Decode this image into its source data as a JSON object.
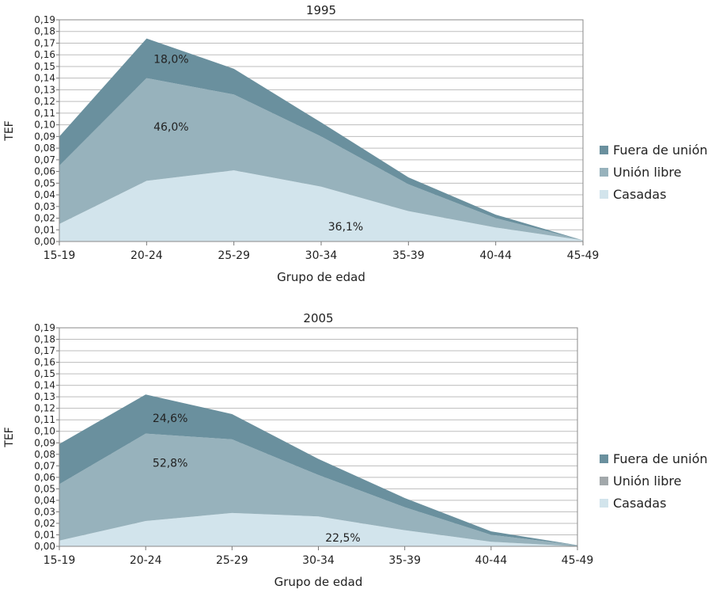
{
  "chart_data": [
    {
      "type": "area",
      "stacked": true,
      "title": "1995",
      "xlabel": "Grupo de edad",
      "ylabel": "TEF",
      "ylim": [
        0,
        0.19
      ],
      "ytick_step": 0.01,
      "grid": true,
      "legend_position": "right",
      "categories": [
        "15-19",
        "20-24",
        "25-29",
        "30-34",
        "35-39",
        "40-44",
        "45-49"
      ],
      "series": [
        {
          "name": "Casadas",
          "color": "#d2e4ec",
          "values": [
            0.015,
            0.052,
            0.061,
            0.047,
            0.026,
            0.012,
            0.001
          ]
        },
        {
          "name": "Unión libre",
          "color": "#97b2bc",
          "values": [
            0.05,
            0.088,
            0.065,
            0.043,
            0.023,
            0.008,
            0.0
          ]
        },
        {
          "name": "Fuera de unión",
          "color": "#6a909e",
          "values": [
            0.025,
            0.034,
            0.022,
            0.012,
            0.006,
            0.003,
            0.0
          ]
        }
      ],
      "legend": [
        {
          "label": "Fuera de unión",
          "color": "#6a909e"
        },
        {
          "label": "Unión libre",
          "color": "#97b2bc"
        },
        {
          "label": "Casadas",
          "color": "#d2e4ec"
        }
      ],
      "annotations": [
        {
          "text": "18,0%",
          "x": "20-24",
          "y": 0.1565
        },
        {
          "text": "46,0%",
          "x": "20-24",
          "y": 0.0985
        },
        {
          "text": "36,1%",
          "x": "30-34",
          "y": 0.013
        }
      ]
    },
    {
      "type": "area",
      "stacked": true,
      "title": "2005",
      "xlabel": "Grupo de edad",
      "ylabel": "TEF",
      "ylim": [
        0,
        0.19
      ],
      "ytick_step": 0.01,
      "grid": true,
      "legend_position": "right",
      "categories": [
        "15-19",
        "20-24",
        "25-29",
        "30-34",
        "35-39",
        "40-44",
        "45-49"
      ],
      "series": [
        {
          "name": "Casadas",
          "color": "#d2e4ec",
          "values": [
            0.005,
            0.022,
            0.029,
            0.026,
            0.014,
            0.004,
            0.0
          ]
        },
        {
          "name": "Unión libre",
          "color": "#97b2bc",
          "values": [
            0.049,
            0.076,
            0.064,
            0.036,
            0.02,
            0.006,
            0.001
          ]
        },
        {
          "name": "Fuera de unión",
          "color": "#6a909e",
          "values": [
            0.035,
            0.034,
            0.022,
            0.014,
            0.008,
            0.003,
            0.0
          ]
        }
      ],
      "legend": [
        {
          "label": "Fuera de unión",
          "color": "#6a909e"
        },
        {
          "label": "Unión libre",
          "color": "#a2a8ab"
        },
        {
          "label": "Casadas",
          "color": "#d2e4ec"
        }
      ],
      "annotations": [
        {
          "text": "24,6%",
          "x": "20-24",
          "y": 0.1115
        },
        {
          "text": "52,8%",
          "x": "20-24",
          "y": 0.0725
        },
        {
          "text": "22,5%",
          "x": "30-34",
          "y": 0.0075
        }
      ]
    }
  ]
}
